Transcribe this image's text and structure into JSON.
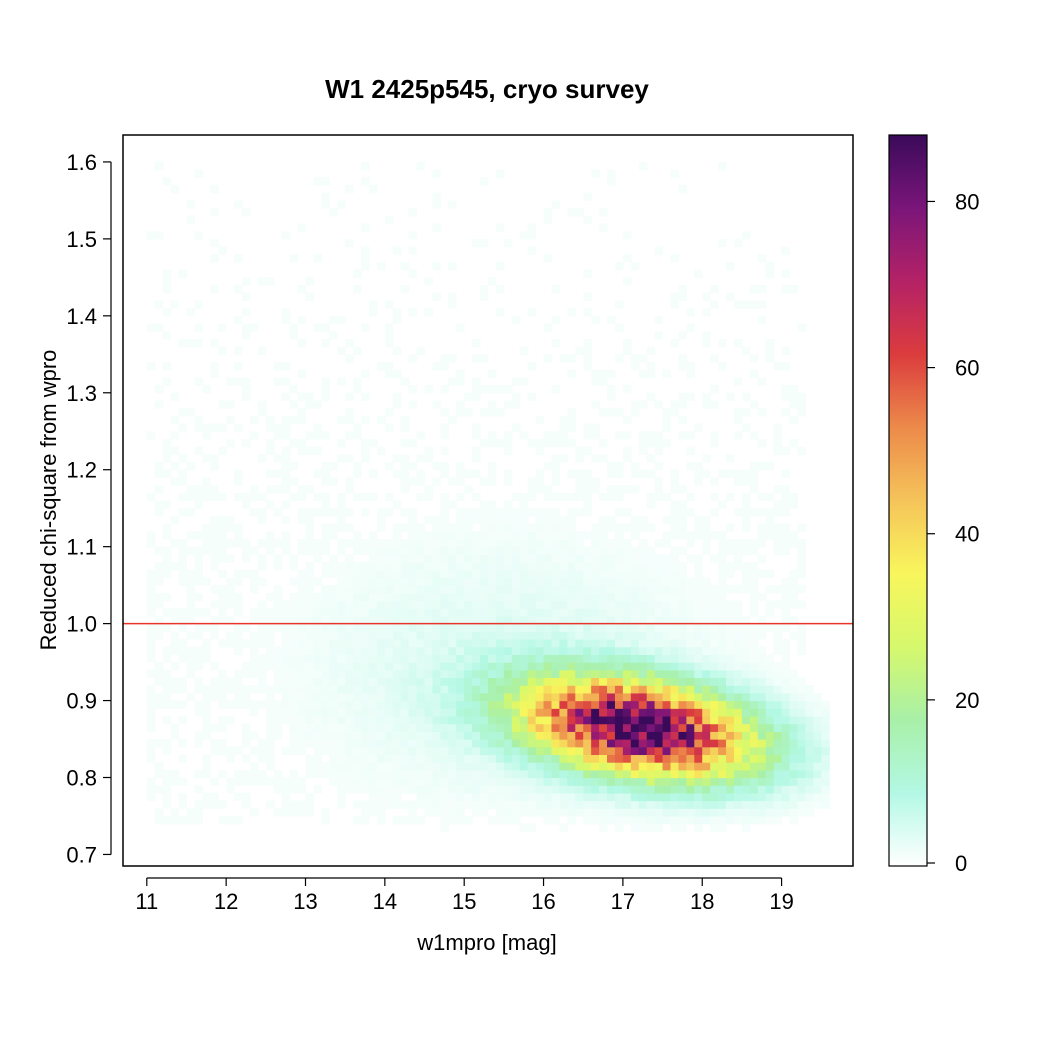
{
  "chart_data": {
    "type": "heatmap",
    "title": "W1 2425p545, cryo survey",
    "xlabel": "w1mpro [mag]",
    "ylabel": "Reduced chi-square from wpro",
    "xlim": [
      10.7,
      19.9
    ],
    "ylim": [
      0.685,
      1.635
    ],
    "x_ticks": [
      "11",
      "12",
      "13",
      "14",
      "15",
      "16",
      "17",
      "18",
      "19"
    ],
    "y_ticks": [
      "0.7",
      "0.8",
      "0.9",
      "1.0",
      "1.1",
      "1.2",
      "1.3",
      "1.4",
      "1.5",
      "1.6"
    ],
    "reference_line": {
      "y": 1.0,
      "color": "#e8352a"
    },
    "colorbar": {
      "range": [
        0,
        88
      ],
      "ticks": [
        "0",
        "20",
        "40",
        "60",
        "80"
      ],
      "colors": [
        "#ffffff",
        "#b3f8e4",
        "#a8f0a8",
        "#d6f86c",
        "#f8f65c",
        "#f5c45a",
        "#ec8a4a",
        "#db3c3d",
        "#b42266",
        "#7a1579",
        "#3a0a5a"
      ]
    },
    "density_model": {
      "bin_x_width": 0.1,
      "bin_y_width": 0.01,
      "peak_count": 88,
      "core": {
        "x_center": 17.2,
        "y_center": 0.865,
        "x_sigma": 0.95,
        "y_sigma": 0.042,
        "correlation": -0.35
      },
      "halo": {
        "x_center": 15.5,
        "y_center": 0.94,
        "x_sigma": 1.8,
        "y_sigma": 0.12,
        "peak_count": 4
      },
      "scatter_x_range": [
        11,
        19.3
      ],
      "scatter_y_range": [
        0.74,
        1.6
      ]
    }
  }
}
